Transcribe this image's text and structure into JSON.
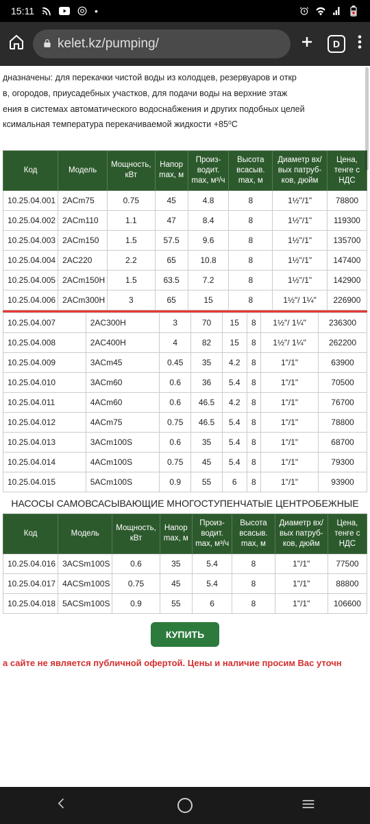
{
  "status": {
    "time": "15:11"
  },
  "browser": {
    "url": "kelet.kz/pumping/",
    "tabs_count": "D"
  },
  "page": {
    "desc1": "дназначены: для перекачки чистой воды из колодцев, резервуаров и откр",
    "desc2": "в, огородов, приусадебных участков, для подачи воды на верхние этаж",
    "desc3": "ения в системах автоматического водоснабжения и других подобных целей",
    "desc4": "ксимальная температура перекачиваемой жидкости +85⁰С",
    "section2_title": "НАСОСЫ САМОВСАСЫВАЮЩИЕ МНОГОСТУПЕНЧАТЫЕ ЦЕНТРОБЕЖНЫЕ",
    "buy_label": "КУПИТЬ",
    "disclaimer": "а сайте не является публичной офертой. Цены и наличие просим Вас уточн"
  },
  "headers": {
    "h1": "Код",
    "h2": "Модель",
    "h3": "Мощность, кВт",
    "h4": "Напор max, м",
    "h5": "Произ-водит. max, м³/ч",
    "h6": "Высота всасыв. max, м",
    "h7": "Диаметр вх/ вых патруб-ков, дюйм",
    "h8": "Цена, тенге с НДС"
  },
  "t1": [
    [
      "10.25.04.001",
      "2ACm75",
      "0.75",
      "45",
      "4.8",
      "8",
      "1½\"/1\"",
      "78800"
    ],
    [
      "10.25.04.002",
      "2ACm110",
      "1.1",
      "47",
      "8.4",
      "8",
      "1½\"/1\"",
      "119300"
    ],
    [
      "10.25.04.003",
      "2ACm150",
      "1.5",
      "57.5",
      "9.6",
      "8",
      "1½\"/1\"",
      "135700"
    ],
    [
      "10.25.04.004",
      "2AC220",
      "2.2",
      "65",
      "10.8",
      "8",
      "1½\"/1\"",
      "147400"
    ],
    [
      "10.25.04.005",
      "2ACm150H",
      "1.5",
      "63.5",
      "7.2",
      "8",
      "1½\"/1\"",
      "142900"
    ],
    [
      "10.25.04.006",
      "2ACm300H",
      "3",
      "65",
      "15",
      "8",
      "1½\"/ 1¼\"",
      "226900"
    ]
  ],
  "t1b": [
    [
      "10.25.04.007",
      "2AC300H",
      "3",
      "70",
      "15",
      "8",
      "1½\"/ 1¼\"",
      "236300"
    ],
    [
      "10.25.04.008",
      "2AC400H",
      "4",
      "82",
      "15",
      "8",
      "1½\"/ 1¼\"",
      "262200"
    ],
    [
      "10.25.04.009",
      "3ACm45",
      "0.45",
      "35",
      "4.2",
      "8",
      "1\"/1\"",
      "63900"
    ],
    [
      "10.25.04.010",
      "3ACm60",
      "0.6",
      "36",
      "5.4",
      "8",
      "1\"/1\"",
      "70500"
    ],
    [
      "10.25.04.011",
      "4ACm60",
      "0.6",
      "46.5",
      "4.2",
      "8",
      "1\"/1\"",
      "76700"
    ],
    [
      "10.25.04.012",
      "4ACm75",
      "0.75",
      "46.5",
      "5.4",
      "8",
      "1\"/1\"",
      "78800"
    ],
    [
      "10.25.04.013",
      "3ACm100S",
      "0.6",
      "35",
      "5.4",
      "8",
      "1\"/1\"",
      "68700"
    ],
    [
      "10.25.04.014",
      "4ACm100S",
      "0.75",
      "45",
      "5.4",
      "8",
      "1\"/1\"",
      "79300"
    ],
    [
      "10.25.04.015",
      "5ACm100S",
      "0.9",
      "55",
      "6",
      "8",
      "1\"/1\"",
      "93900"
    ]
  ],
  "t2": [
    [
      "10.25.04.016",
      "3ACSm100S",
      "0.6",
      "35",
      "5.4",
      "8",
      "1\"/1\"",
      "77500"
    ],
    [
      "10.25.04.017",
      "4ACSm100S",
      "0.75",
      "45",
      "5.4",
      "8",
      "1\"/1\"",
      "88800"
    ],
    [
      "10.25.04.018",
      "5ACSm100S",
      "0.9",
      "55",
      "6",
      "8",
      "1\"/1\"",
      "106600"
    ]
  ]
}
